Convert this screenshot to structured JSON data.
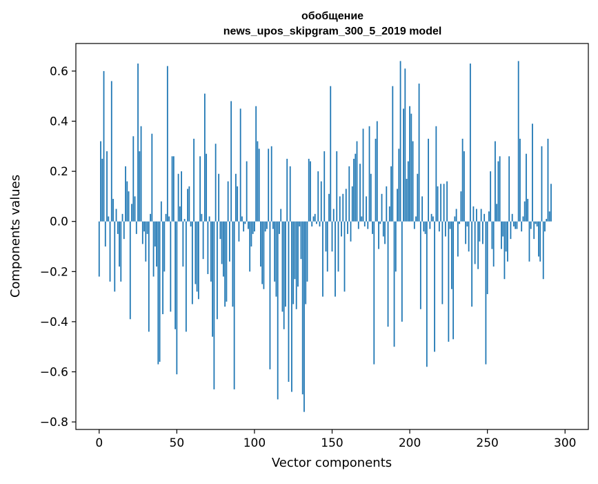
{
  "chart_data": {
    "type": "bar",
    "title_line1": "обобщение",
    "title_line2": "news_upos_skipgram_300_5_2019 model",
    "xlabel": "Vector components",
    "ylabel": "Components values",
    "xlim": [
      -15,
      315
    ],
    "ylim": [
      -0.83,
      0.71
    ],
    "x_ticks": [
      0,
      50,
      100,
      150,
      200,
      250,
      300
    ],
    "x_tick_labels": [
      "0",
      "50",
      "100",
      "150",
      "200",
      "250",
      "300"
    ],
    "y_ticks": [
      -0.8,
      -0.6,
      -0.4,
      -0.2,
      0.0,
      0.2,
      0.4,
      0.6
    ],
    "y_tick_labels": [
      "−0.8",
      "−0.6",
      "−0.4",
      "−0.2",
      "0.0",
      "0.2",
      "0.4",
      "0.6"
    ],
    "bar_color": "#1f77b4",
    "grid": false,
    "values": [
      -0.22,
      0.32,
      0.25,
      0.6,
      -0.1,
      0.28,
      0.02,
      -0.24,
      0.56,
      0.09,
      -0.28,
      0.05,
      -0.05,
      -0.18,
      -0.24,
      0.03,
      -0.07,
      0.22,
      0.16,
      0.12,
      -0.39,
      0.07,
      0.34,
      0.1,
      -0.05,
      0.63,
      0.28,
      0.38,
      -0.09,
      -0.04,
      -0.16,
      -0.05,
      -0.44,
      0.03,
      0.35,
      -0.22,
      -0.1,
      -0.18,
      -0.57,
      -0.56,
      0.08,
      -0.37,
      -0.2,
      0.03,
      0.62,
      0.02,
      -0.36,
      0.26,
      0.26,
      -0.43,
      -0.61,
      0.19,
      0.06,
      0.2,
      -0.18,
      0.01,
      -0.44,
      0.13,
      0.14,
      -0.02,
      -0.33,
      0.33,
      -0.25,
      -0.28,
      -0.31,
      0.26,
      0.03,
      -0.15,
      0.51,
      0.27,
      -0.21,
      0.02,
      -0.24,
      -0.46,
      -0.67,
      0.31,
      -0.39,
      0.19,
      -0.07,
      -0.17,
      -0.22,
      -0.34,
      -0.32,
      0.16,
      -0.16,
      0.48,
      -0.34,
      -0.67,
      0.19,
      0.14,
      -0.08,
      0.45,
      0.02,
      -0.04,
      -0.01,
      0.24,
      -0.03,
      -0.2,
      -0.1,
      -0.05,
      -0.04,
      0.46,
      0.32,
      0.29,
      -0.18,
      -0.25,
      -0.27,
      -0.04,
      -0.03,
      0.29,
      -0.59,
      0.3,
      -0.03,
      -0.24,
      -0.3,
      -0.71,
      -0.05,
      0.05,
      -0.36,
      -0.43,
      -0.34,
      0.25,
      -0.64,
      0.22,
      -0.68,
      -0.33,
      -0.23,
      -0.35,
      -0.26,
      -0.02,
      -0.15,
      -0.69,
      -0.76,
      -0.33,
      -0.24,
      0.25,
      0.24,
      -0.02,
      0.02,
      0.03,
      -0.01,
      0.2,
      -0.02,
      0.16,
      -0.3,
      0.28,
      -0.12,
      -0.2,
      0.11,
      0.54,
      -0.12,
      0.05,
      -0.3,
      0.28,
      -0.2,
      0.1,
      -0.06,
      0.11,
      -0.28,
      0.13,
      -0.05,
      0.22,
      -0.08,
      0.14,
      0.25,
      0.27,
      0.32,
      -0.03,
      0.23,
      0.02,
      0.37,
      -0.02,
      0.1,
      -0.03,
      0.38,
      0.19,
      -0.05,
      -0.57,
      0.33,
      0.4,
      -0.11,
      -0.01,
      0.11,
      -0.06,
      -0.09,
      0.14,
      -0.42,
      0.06,
      0.22,
      0.54,
      -0.5,
      -0.2,
      0.13,
      0.29,
      0.64,
      -0.4,
      0.45,
      0.61,
      0.17,
      0.24,
      0.46,
      0.43,
      0.32,
      -0.03,
      0.02,
      0.19,
      0.55,
      -0.35,
      0.1,
      -0.04,
      -0.05,
      -0.58,
      0.33,
      -0.03,
      0.03,
      0.02,
      -0.52,
      0.38,
      0.14,
      -0.04,
      0.15,
      -0.33,
      0.15,
      -0.06,
      0.16,
      -0.48,
      -0.03,
      -0.27,
      -0.47,
      0.02,
      0.05,
      -0.14,
      -0.01,
      0.12,
      0.33,
      0.28,
      -0.09,
      -0.02,
      -0.12,
      0.63,
      -0.34,
      0.06,
      -0.17,
      0.05,
      -0.19,
      -0.08,
      0.05,
      -0.09,
      0.03,
      -0.57,
      -0.29,
      0.04,
      0.2,
      -0.11,
      -0.18,
      0.32,
      0.07,
      0.24,
      0.26,
      -0.11,
      -0.06,
      -0.23,
      -0.12,
      -0.16,
      0.26,
      -0.07,
      0.03,
      -0.02,
      -0.03,
      -0.03,
      0.64,
      0.33,
      -0.04,
      0.02,
      0.08,
      0.27,
      0.09,
      -0.16,
      -0.03,
      0.39,
      -0.07,
      -0.01,
      -0.02,
      -0.14,
      -0.16,
      0.3,
      -0.23,
      -0.04,
      0.01,
      0.33,
      0.04,
      0.15
    ]
  }
}
